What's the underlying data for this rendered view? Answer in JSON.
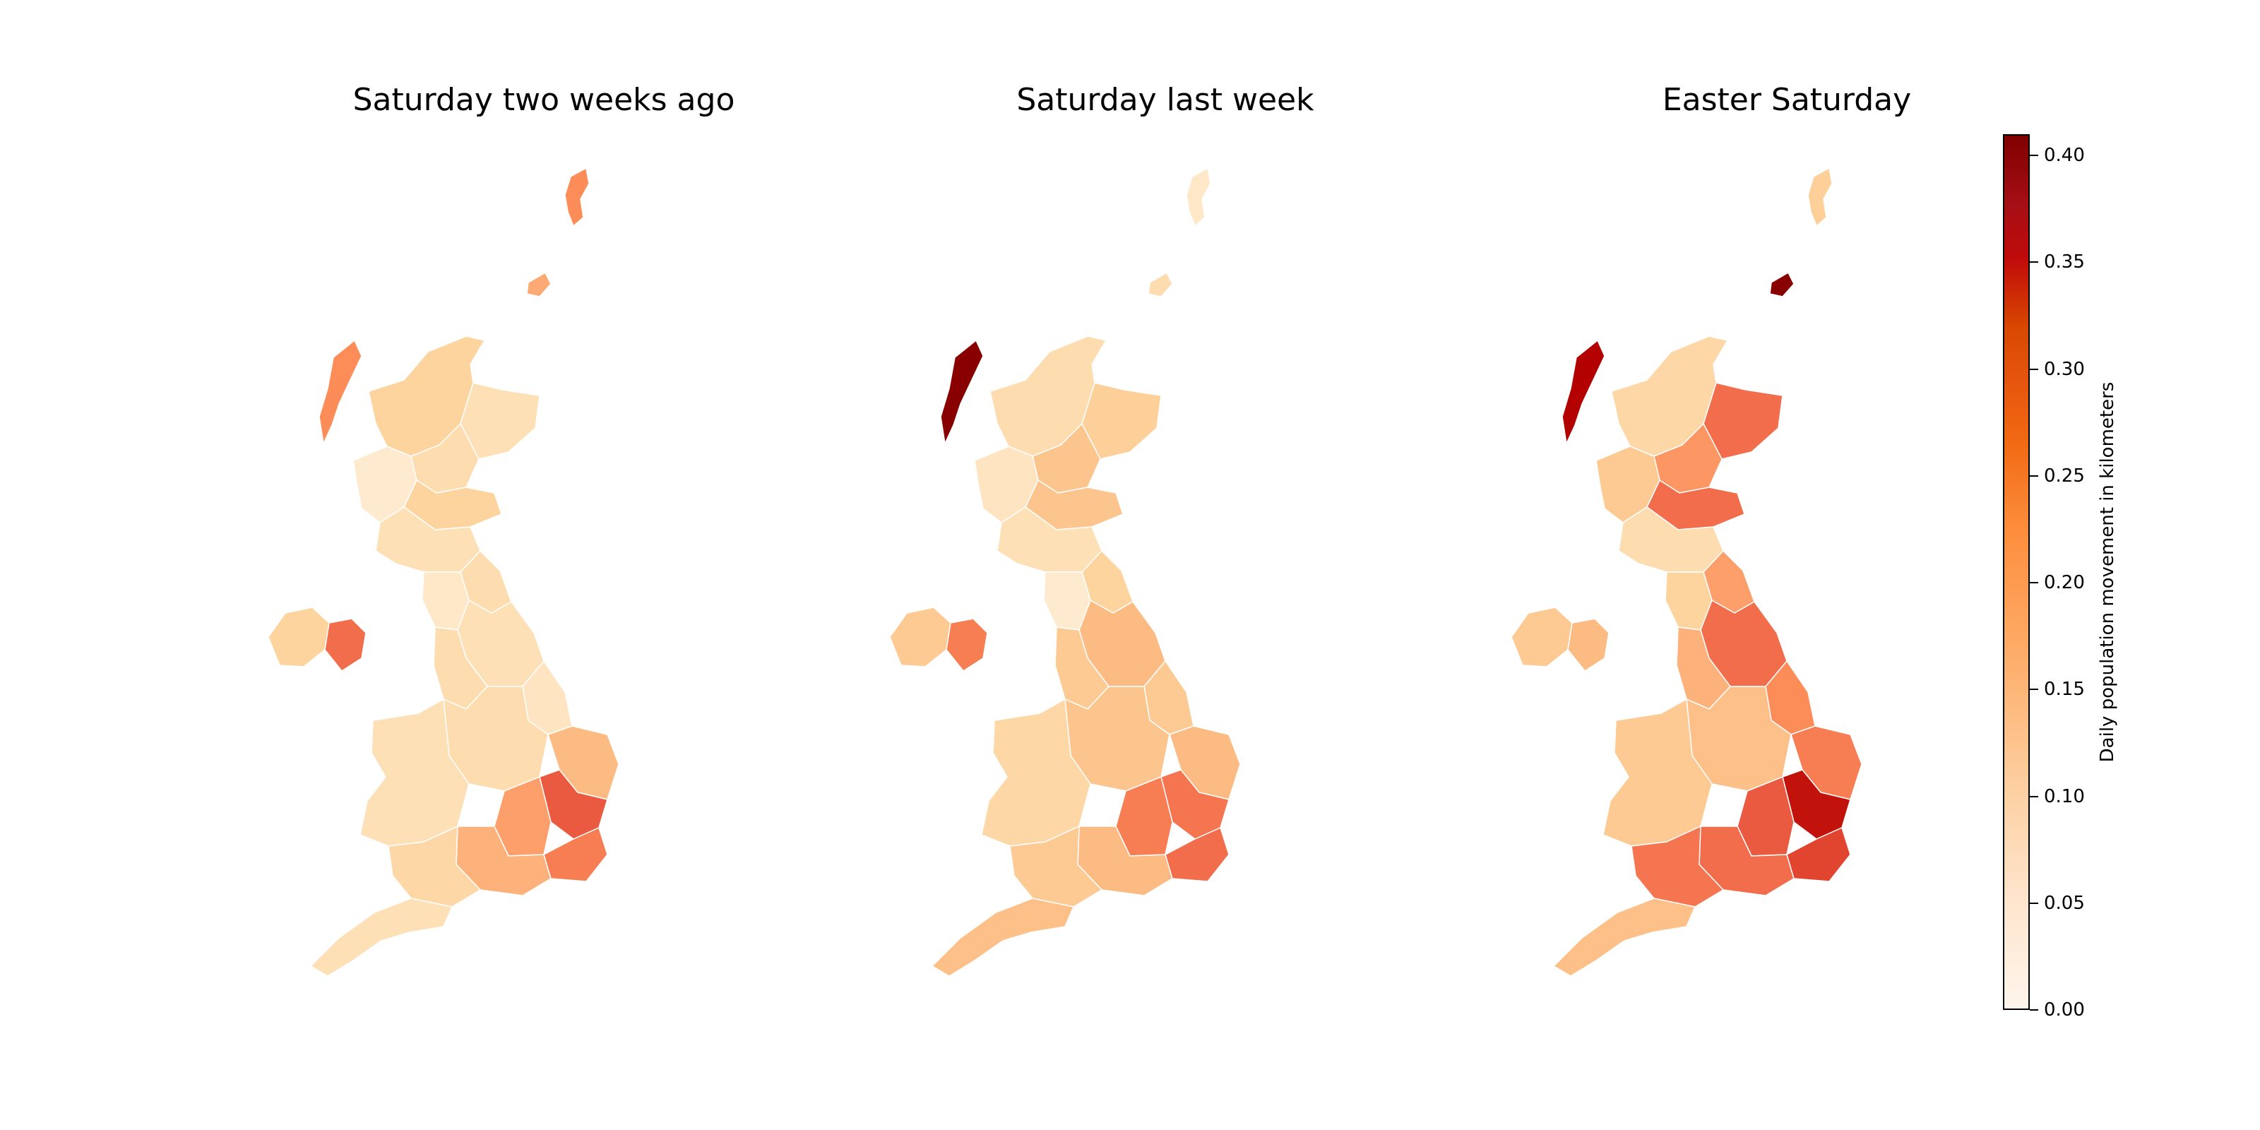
{
  "figure": {
    "panels": [
      {
        "title": "Saturday two weeks ago",
        "region_values": {
          "shetland": 0.2,
          "orkney": 0.17,
          "western_isles": 0.2,
          "highland": 0.1,
          "grampian": 0.07,
          "tayside": 0.08,
          "argyll": 0.04,
          "central_belt": 0.1,
          "southern_scotland": 0.07,
          "northern_ireland_west": 0.1,
          "northern_ireland_east": 0.24,
          "north_east_england": 0.08,
          "cumbria": 0.05,
          "yorkshire": 0.07,
          "lancashire": 0.08,
          "lincolnshire": 0.06,
          "midlands": 0.08,
          "wales": 0.07,
          "east_anglia": 0.15,
          "essex": 0.26,
          "london": 0.18,
          "south_east": 0.16,
          "south_west": 0.09,
          "devon_cornwall": 0.07,
          "kent": 0.22
        }
      },
      {
        "title": "Saturday last week",
        "region_values": {
          "shetland": 0.05,
          "orkney": 0.08,
          "western_isles": 0.4,
          "highland": 0.08,
          "grampian": 0.11,
          "tayside": 0.13,
          "argyll": 0.06,
          "central_belt": 0.13,
          "southern_scotland": 0.07,
          "northern_ireland_west": 0.12,
          "northern_ireland_east": 0.22,
          "north_east_england": 0.1,
          "cumbria": 0.04,
          "yorkshire": 0.15,
          "lancashire": 0.12,
          "lincolnshire": 0.12,
          "midlands": 0.13,
          "wales": 0.09,
          "east_anglia": 0.15,
          "essex": 0.23,
          "london": 0.22,
          "south_east": 0.15,
          "south_west": 0.12,
          "devon_cornwall": 0.14,
          "kent": 0.24
        }
      },
      {
        "title": "Easter Saturday",
        "region_values": {
          "shetland": 0.11,
          "orkney": 0.4,
          "western_isles": 0.35,
          "highland": 0.09,
          "grampian": 0.24,
          "tayside": 0.19,
          "argyll": 0.12,
          "central_belt": 0.24,
          "southern_scotland": 0.08,
          "northern_ireland_west": 0.12,
          "northern_ireland_east": 0.15,
          "north_east_england": 0.18,
          "cumbria": 0.1,
          "yorkshire": 0.24,
          "lancashire": 0.16,
          "lincolnshire": 0.2,
          "midlands": 0.14,
          "wales": 0.12,
          "east_anglia": 0.22,
          "essex": 0.33,
          "london": 0.26,
          "south_east": 0.24,
          "south_west": 0.23,
          "devon_cornwall": 0.14,
          "kent": 0.28
        }
      }
    ],
    "colorbar": {
      "label": "Daily population movement in kilometers",
      "min": 0.0,
      "max": 0.41,
      "ticks": [
        "0.00",
        "0.05",
        "0.10",
        "0.15",
        "0.20",
        "0.25",
        "0.30",
        "0.35",
        "0.40"
      ],
      "colormap": "OrRd"
    }
  }
}
